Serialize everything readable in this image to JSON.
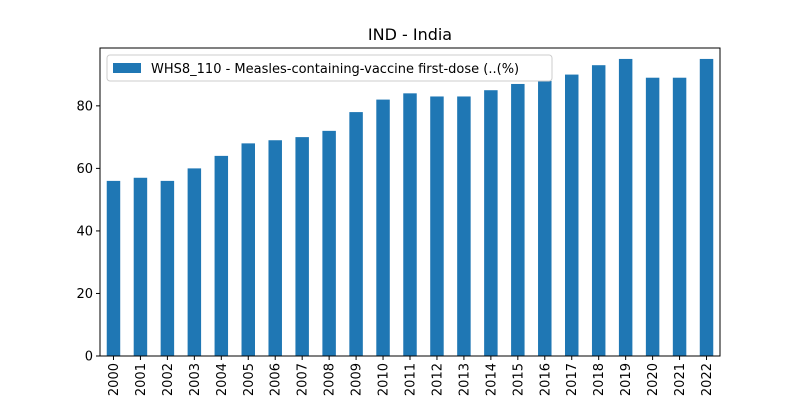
{
  "chart_data": {
    "type": "bar",
    "title": "IND - India",
    "xlabel": "",
    "ylabel": "",
    "categories": [
      "2000",
      "2001",
      "2002",
      "2003",
      "2004",
      "2005",
      "2006",
      "2007",
      "2008",
      "2009",
      "2010",
      "2011",
      "2012",
      "2013",
      "2014",
      "2015",
      "2016",
      "2017",
      "2018",
      "2019",
      "2020",
      "2021",
      "2022"
    ],
    "series": [
      {
        "name": "WHS8_110 - Measles-containing-vaccine first-dose (..(%)",
        "color": "#1f77b4",
        "values": [
          56,
          57,
          56,
          60,
          64,
          68,
          69,
          70,
          72,
          78,
          82,
          84,
          83,
          83,
          85,
          87,
          88,
          90,
          93,
          95,
          89,
          89,
          95
        ]
      }
    ],
    "ylim": [
      0,
      98.5
    ],
    "yticks": [
      0,
      20,
      40,
      60,
      80
    ],
    "ytick_labels": [
      "0",
      "20",
      "40",
      "60",
      "80"
    ],
    "legend_position": "upper-left",
    "grid": false
  }
}
